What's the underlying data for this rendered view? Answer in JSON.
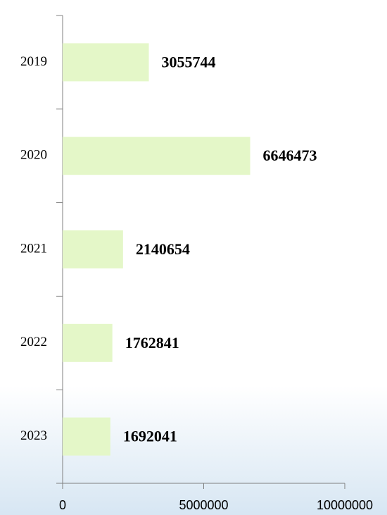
{
  "chart_data": {
    "type": "bar",
    "orientation": "horizontal",
    "categories": [
      "2019",
      "2020",
      "2021",
      "2022",
      "2023"
    ],
    "values": [
      3055744,
      6646473,
      2140654,
      1762841,
      1692041
    ],
    "color": "#e4f7c8",
    "xlim": [
      0,
      10000000
    ],
    "xticks": [
      0,
      5000000,
      10000000
    ],
    "grid": false
  }
}
